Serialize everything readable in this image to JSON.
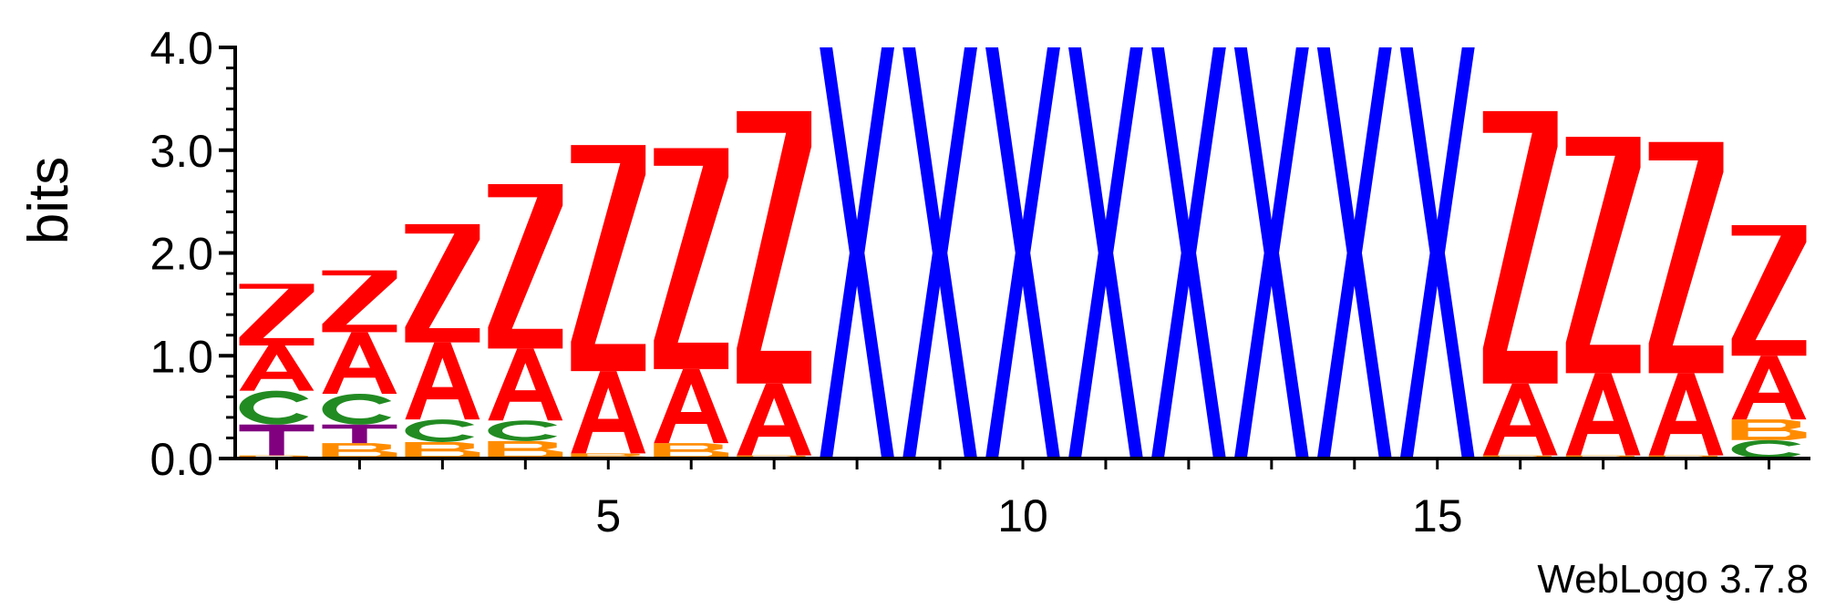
{
  "chart_data": {
    "type": "sequence-logo",
    "ylabel": "bits",
    "xlabel": "",
    "ylim": [
      0,
      4.0
    ],
    "y_ticks": [
      "0.0",
      "1.0",
      "2.0",
      "3.0",
      "4.0"
    ],
    "x_tick_labels": [
      {
        "pos": 5,
        "label": "5"
      },
      {
        "pos": 10,
        "label": "10"
      },
      {
        "pos": 15,
        "label": "15"
      }
    ],
    "positions": [
      1,
      2,
      3,
      4,
      5,
      6,
      7,
      8,
      9,
      10,
      11,
      12,
      13,
      14,
      15,
      16,
      17,
      18,
      19
    ],
    "colors": {
      "Z": "#ff0000",
      "A": "#ff0000",
      "X": "#0000ff",
      "C": "#228b22",
      "B": "#ff8c00",
      "T": "#800080"
    },
    "stacks": [
      [
        {
          "letter": "B",
          "bits": 0.03
        },
        {
          "letter": "T",
          "bits": 0.3
        },
        {
          "letter": "C",
          "bits": 0.33
        },
        {
          "letter": "A",
          "bits": 0.44
        },
        {
          "letter": "Z",
          "bits": 0.6
        }
      ],
      [
        {
          "letter": "B",
          "bits": 0.15
        },
        {
          "letter": "T",
          "bits": 0.18
        },
        {
          "letter": "C",
          "bits": 0.3
        },
        {
          "letter": "A",
          "bits": 0.6
        },
        {
          "letter": "Z",
          "bits": 0.6
        }
      ],
      [
        {
          "letter": "B",
          "bits": 0.16
        },
        {
          "letter": "C",
          "bits": 0.22
        },
        {
          "letter": "A",
          "bits": 0.75
        },
        {
          "letter": "Z",
          "bits": 1.15
        }
      ],
      [
        {
          "letter": "B",
          "bits": 0.17
        },
        {
          "letter": "C",
          "bits": 0.2
        },
        {
          "letter": "A",
          "bits": 0.7
        },
        {
          "letter": "Z",
          "bits": 1.6
        }
      ],
      [
        {
          "letter": "B",
          "bits": 0.05
        },
        {
          "letter": "A",
          "bits": 0.8
        },
        {
          "letter": "Z",
          "bits": 2.2
        }
      ],
      [
        {
          "letter": "B",
          "bits": 0.15
        },
        {
          "letter": "A",
          "bits": 0.72
        },
        {
          "letter": "Z",
          "bits": 2.15
        }
      ],
      [
        {
          "letter": "B",
          "bits": 0.03
        },
        {
          "letter": "A",
          "bits": 0.7
        },
        {
          "letter": "Z",
          "bits": 2.65
        }
      ],
      [
        {
          "letter": "X",
          "bits": 4.0
        }
      ],
      [
        {
          "letter": "X",
          "bits": 4.0
        }
      ],
      [
        {
          "letter": "X",
          "bits": 4.0
        }
      ],
      [
        {
          "letter": "X",
          "bits": 4.0
        }
      ],
      [
        {
          "letter": "X",
          "bits": 4.0
        }
      ],
      [
        {
          "letter": "X",
          "bits": 4.0
        }
      ],
      [
        {
          "letter": "X",
          "bits": 4.0
        }
      ],
      [
        {
          "letter": "X",
          "bits": 4.0
        }
      ],
      [
        {
          "letter": "B",
          "bits": 0.03
        },
        {
          "letter": "A",
          "bits": 0.7
        },
        {
          "letter": "Z",
          "bits": 2.65
        }
      ],
      [
        {
          "letter": "B",
          "bits": 0.03
        },
        {
          "letter": "A",
          "bits": 0.8
        },
        {
          "letter": "Z",
          "bits": 2.3
        }
      ],
      [
        {
          "letter": "B",
          "bits": 0.03
        },
        {
          "letter": "A",
          "bits": 0.8
        },
        {
          "letter": "Z",
          "bits": 2.25
        }
      ],
      [
        {
          "letter": "C",
          "bits": 0.18
        },
        {
          "letter": "B",
          "bits": 0.2
        },
        {
          "letter": "A",
          "bits": 0.62
        },
        {
          "letter": "Z",
          "bits": 1.27
        }
      ]
    ]
  },
  "footer": {
    "credit": "WebLogo 3.7.8"
  }
}
